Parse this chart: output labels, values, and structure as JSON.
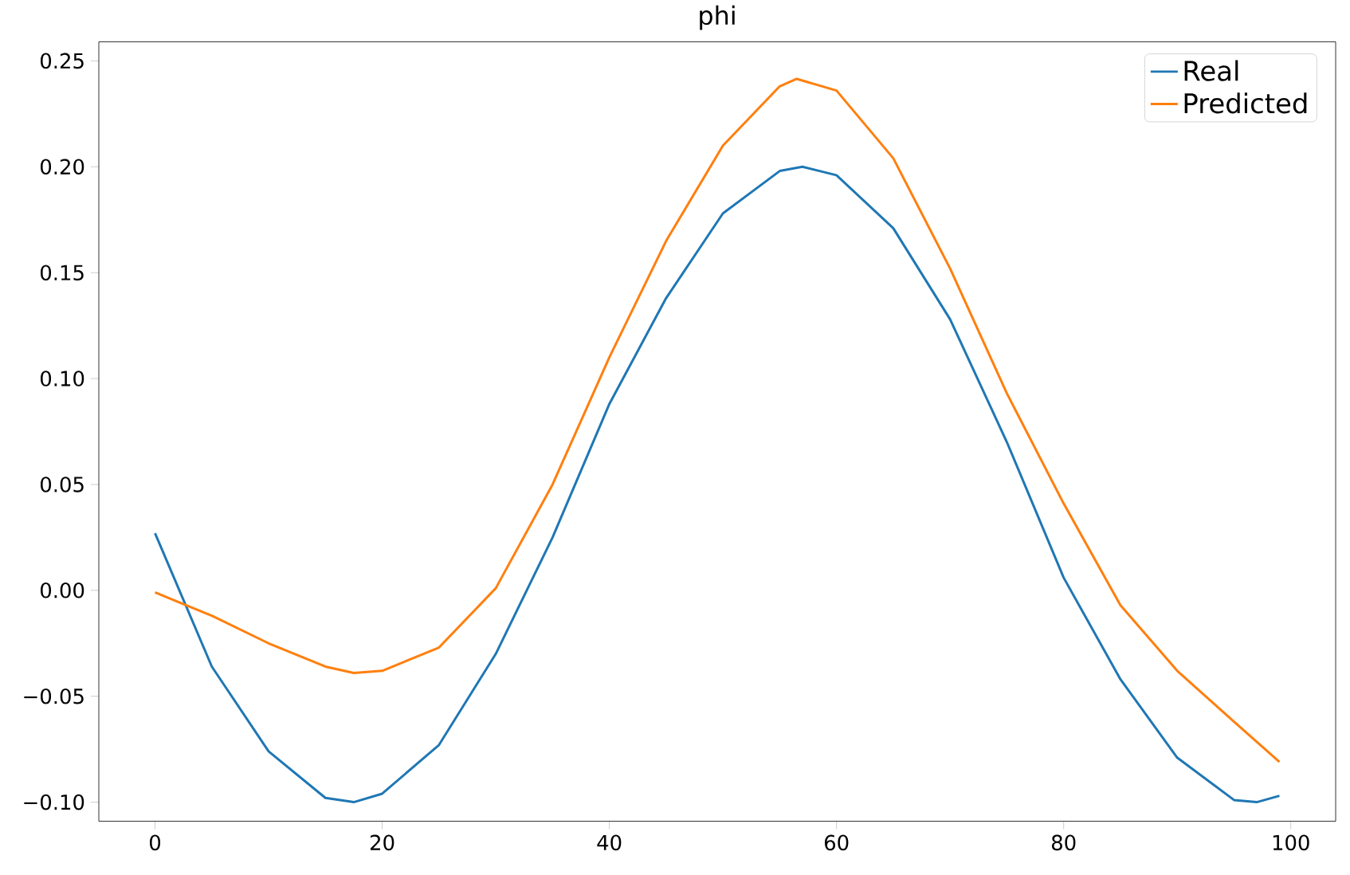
{
  "chart_data": {
    "type": "line",
    "title": "phi",
    "xlim": [
      -4.95,
      103.95
    ],
    "ylim": [
      -0.109,
      0.259
    ],
    "xticks": [
      0,
      20,
      40,
      60,
      80,
      100
    ],
    "yticks": [
      {
        "value": -0.1,
        "label": "−0.10"
      },
      {
        "value": -0.05,
        "label": "−0.05"
      },
      {
        "value": 0,
        "label": "0.00"
      },
      {
        "value": 0.05,
        "label": "0.05"
      },
      {
        "value": 0.1,
        "label": "0.10"
      },
      {
        "value": 0.15,
        "label": "0.15"
      },
      {
        "value": 0.2,
        "label": "0.20"
      },
      {
        "value": 0.25,
        "label": "0.25"
      }
    ],
    "legend": "top right",
    "marker": "none",
    "line_style": "solid",
    "series": [
      {
        "name": "Real",
        "color": "#1f77b4",
        "x": [
          0,
          5,
          10,
          15,
          17.5,
          20,
          25,
          30,
          35,
          40,
          45,
          50,
          55,
          57,
          60,
          65,
          70,
          75,
          80,
          85,
          90,
          95,
          97,
          99
        ],
        "values": [
          0.027,
          -0.036,
          -0.076,
          -0.098,
          -0.1,
          -0.096,
          -0.073,
          -0.03,
          0.025,
          0.088,
          0.138,
          0.178,
          0.198,
          0.2,
          0.196,
          0.171,
          0.128,
          0.07,
          0.006,
          -0.042,
          -0.079,
          -0.099,
          -0.1,
          -0.097
        ]
      },
      {
        "name": "Predicted",
        "color": "#ff7f0e",
        "x": [
          0,
          5,
          10,
          15,
          17.5,
          20,
          25,
          30,
          35,
          40,
          45,
          50,
          55,
          56.5,
          60,
          65,
          70,
          75,
          80,
          85,
          90,
          95,
          99
        ],
        "values": [
          -0.001,
          -0.012,
          -0.025,
          -0.036,
          -0.039,
          -0.038,
          -0.027,
          0.001,
          0.05,
          0.11,
          0.165,
          0.21,
          0.238,
          0.2415,
          0.236,
          0.204,
          0.152,
          0.093,
          0.041,
          -0.007,
          -0.038,
          -0.062,
          -0.081
        ]
      }
    ]
  }
}
